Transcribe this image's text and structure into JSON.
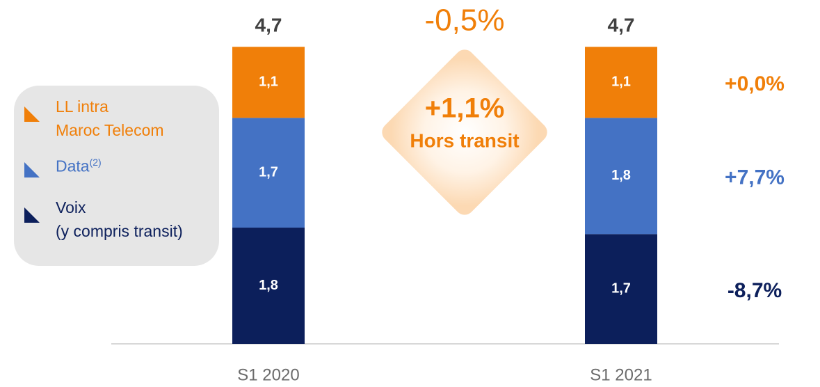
{
  "chart_data": {
    "type": "stacked_bar",
    "categories": [
      "S1 2020",
      "S1 2021"
    ],
    "ylim": [
      0,
      4.7
    ],
    "series": [
      {
        "name": "Voix\n(y compris transit)",
        "color": "#0c1f5b",
        "values": [
          1.8,
          1.7
        ],
        "value_labels": [
          "1,8",
          "1,7"
        ],
        "growth": "-8,7%"
      },
      {
        "name": "Data",
        "name_note": "(2)",
        "color": "#4472c4",
        "values": [
          1.7,
          1.8
        ],
        "value_labels": [
          "1,7",
          "1,8"
        ],
        "growth": "+7,7%"
      },
      {
        "name": "LL intra\nMaroc Telecom",
        "color": "#f07f09",
        "values": [
          1.1,
          1.1
        ],
        "value_labels": [
          "1,1",
          "1,1"
        ],
        "growth": "+0,0%"
      }
    ],
    "totals": [
      4.7,
      4.7
    ],
    "total_labels": [
      "4,7",
      "4,7"
    ],
    "annotations": {
      "total_change": "-0,5%",
      "change_ex_transit": "+1,1%",
      "ex_transit_label": "Hors transit"
    }
  }
}
